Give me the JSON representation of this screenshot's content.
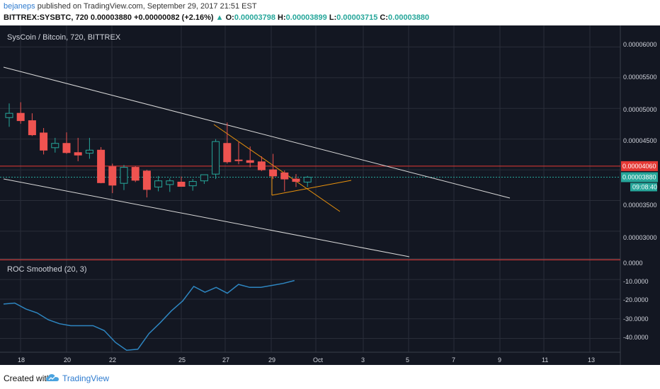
{
  "header": {
    "author": "bejaneps",
    "published": "published on TradingView.com, September 29, 2017 21:51 EST",
    "symbol": "BITTREX:SYSBTC, 720",
    "last": "0.00003880",
    "change": "+0.00000082 (+2.16%)",
    "open_label": "O:",
    "open": "0.00003798",
    "high_label": "H:",
    "high": "0.00003899",
    "low_label": "L:",
    "low": "0.00003715",
    "close_label": "C:",
    "close": "0.00003880"
  },
  "main_pane": {
    "title": "SysCoin / Bitcoin, 720, BITTREX",
    "price_ticks": [
      "0.00006000",
      "0.00005500",
      "0.00005000",
      "0.00004500",
      "0.00003500",
      "0.00003000"
    ],
    "red_level_label": "0.00004060",
    "current_price_label": "0.00003880",
    "countdown_label": "09:08:40"
  },
  "indicator_pane": {
    "title": "ROC Smoothed (20, 3)",
    "ticks": [
      "0.0000",
      "-10.0000",
      "-20.0000",
      "-30.0000",
      "-40.0000"
    ]
  },
  "x_axis": {
    "labels": [
      "18",
      "20",
      "22",
      "25",
      "27",
      "29",
      "Oct",
      "3",
      "5",
      "7",
      "9",
      "11",
      "13"
    ]
  },
  "footer": {
    "created": "Created with",
    "brand": "TradingView"
  },
  "colors": {
    "background": "#131722",
    "up": "#26a69a",
    "down": "#ef5350",
    "red_level": "#e53935",
    "trendline": "#d9d9d9",
    "triangle": "#e8910c",
    "roc": "#2e86c1"
  },
  "chart_data": [
    {
      "type": "candlestick",
      "title": "SysCoin / Bitcoin, 720, BITTREX",
      "ylim": [
        2.55e-05,
        6.35e-05
      ],
      "x_tick_labels": [
        "18",
        "20",
        "22",
        "25",
        "27",
        "29",
        "Oct",
        "3",
        "5",
        "7",
        "9",
        "11",
        "13"
      ],
      "candles": [
        {
          "o": 4.85e-05,
          "h": 5.08e-05,
          "l": 4.7e-05,
          "c": 4.92e-05
        },
        {
          "o": 4.92e-05,
          "h": 5.1e-05,
          "l": 4.75e-05,
          "c": 4.8e-05
        },
        {
          "o": 4.8e-05,
          "h": 4.92e-05,
          "l": 4.55e-05,
          "c": 4.57e-05
        },
        {
          "o": 4.6e-05,
          "h": 4.68e-05,
          "l": 4.25e-05,
          "c": 4.32e-05
        },
        {
          "o": 4.36e-05,
          "h": 4.52e-05,
          "l": 4.28e-05,
          "c": 4.43e-05
        },
        {
          "o": 4.43e-05,
          "h": 4.61e-05,
          "l": 4.26e-05,
          "c": 4.28e-05
        },
        {
          "o": 4.28e-05,
          "h": 4.52e-05,
          "l": 4.14e-05,
          "c": 4.24e-05
        },
        {
          "o": 4.27e-05,
          "h": 4.52e-05,
          "l": 4.18e-05,
          "c": 4.32e-05
        },
        {
          "o": 4.32e-05,
          "h": 4.37e-05,
          "l": 3.78e-05,
          "c": 3.79e-05
        },
        {
          "o": 4.05e-05,
          "h": 4.1e-05,
          "l": 3.62e-05,
          "c": 3.75e-05
        },
        {
          "o": 3.78e-05,
          "h": 4.08e-05,
          "l": 3.67e-05,
          "c": 4.04e-05
        },
        {
          "o": 4.04e-05,
          "h": 4.06e-05,
          "l": 3.8e-05,
          "c": 3.83e-05
        },
        {
          "o": 3.98e-05,
          "h": 4e-05,
          "l": 3.55e-05,
          "c": 3.68e-05
        },
        {
          "o": 3.72e-05,
          "h": 3.9e-05,
          "l": 3.65e-05,
          "c": 3.82e-05
        },
        {
          "o": 3.76e-05,
          "h": 3.86e-05,
          "l": 3.64e-05,
          "c": 3.82e-05
        },
        {
          "o": 3.8e-05,
          "h": 3.89e-05,
          "l": 3.73e-05,
          "c": 3.73e-05
        },
        {
          "o": 3.74e-05,
          "h": 3.85e-05,
          "l": 3.66e-05,
          "c": 3.81e-05
        },
        {
          "o": 3.82e-05,
          "h": 3.92e-05,
          "l": 3.77e-05,
          "c": 3.92e-05
        },
        {
          "o": 3.93e-05,
          "h": 4.5e-05,
          "l": 3.85e-05,
          "c": 4.46e-05
        },
        {
          "o": 4.43e-05,
          "h": 4.77e-05,
          "l": 4.1e-05,
          "c": 4.13e-05
        },
        {
          "o": 4.16e-05,
          "h": 4.45e-05,
          "l": 4.09e-05,
          "c": 4.15e-05
        },
        {
          "o": 4.15e-05,
          "h": 4.38e-05,
          "l": 4.04e-05,
          "c": 4.12e-05
        },
        {
          "o": 4.13e-05,
          "h": 4.22e-05,
          "l": 3.98e-05,
          "c": 4e-05
        },
        {
          "o": 4e-05,
          "h": 4.26e-05,
          "l": 3.85e-05,
          "c": 3.9e-05
        },
        {
          "o": 3.95e-05,
          "h": 3.99e-05,
          "l": 3.65e-05,
          "c": 3.85e-05
        },
        {
          "o": 3.85e-05,
          "h": 3.93e-05,
          "l": 3.72e-05,
          "c": 3.81e-05
        },
        {
          "o": 3.8e-05,
          "h": 3.9e-05,
          "l": 3.72e-05,
          "c": 3.88e-05
        }
      ],
      "horizontal_level": 4.06e-05,
      "current_price": 3.88e-05
    },
    {
      "type": "line",
      "title": "ROC Smoothed (20, 3)",
      "ylim": [
        -47,
        0.5
      ],
      "series": [
        {
          "values": [
            -22.5,
            -22,
            -25,
            -27,
            -30.5,
            -32.5,
            -33.5,
            -33.5,
            -33.5,
            -36,
            -42,
            -46,
            -45.5,
            -37.5,
            -32,
            -26,
            -21,
            -13.5,
            -16.5,
            -14,
            -17,
            -12.5,
            -14,
            -14,
            -13,
            -12,
            -10.5
          ]
        }
      ]
    }
  ]
}
